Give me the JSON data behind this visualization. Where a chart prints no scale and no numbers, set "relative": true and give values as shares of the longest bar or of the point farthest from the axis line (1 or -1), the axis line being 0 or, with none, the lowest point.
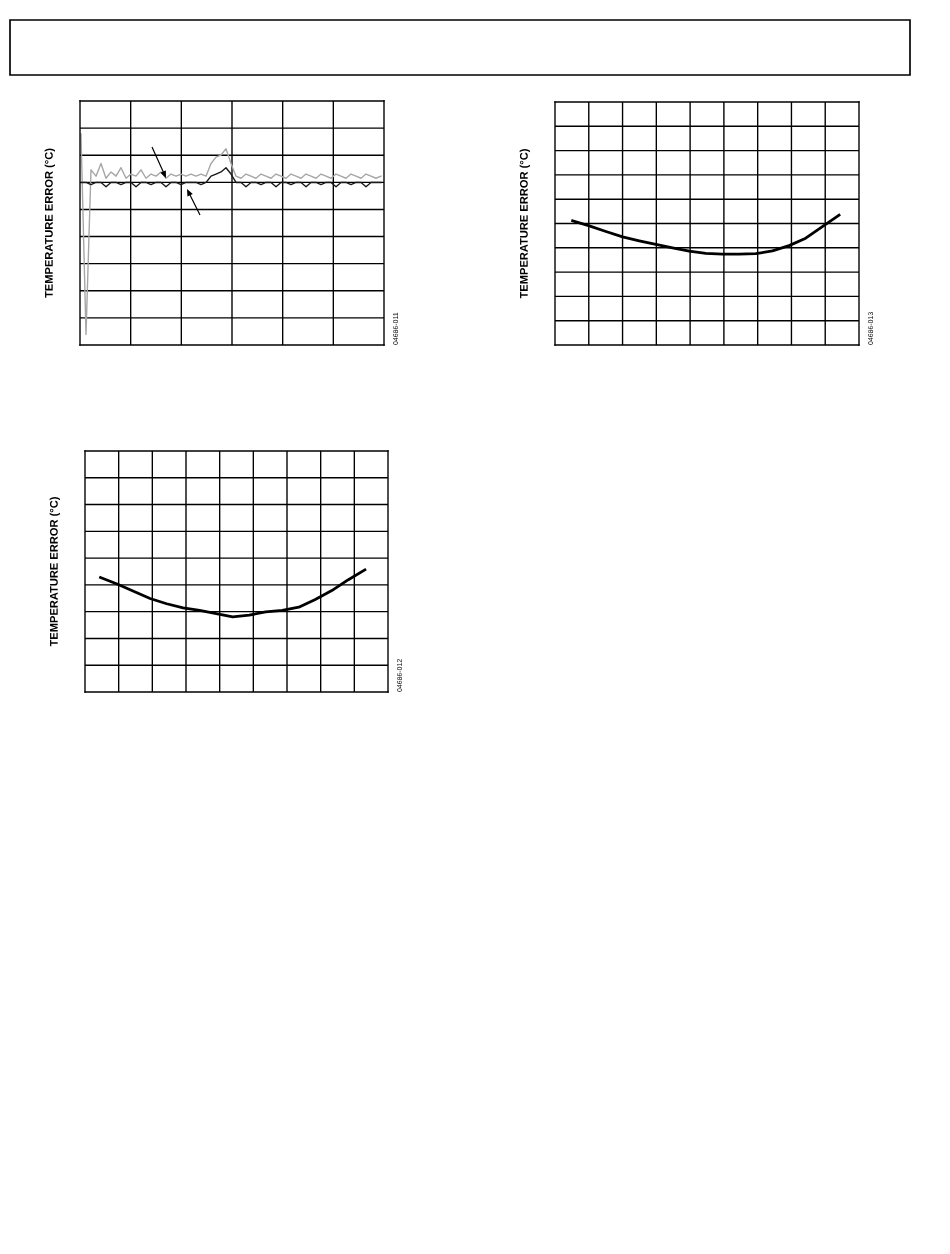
{
  "chart_data": [
    {
      "type": "line",
      "ylabel": "TEMPERATURE ERROR (°C)",
      "relative": true,
      "grid": true,
      "annotations": [
        "04686-011"
      ],
      "categories": [
        null,
        null,
        null,
        null,
        null,
        null,
        null,
        null,
        null,
        null,
        null,
        null,
        null,
        null,
        null,
        null,
        null,
        null,
        null,
        null,
        null,
        null,
        null,
        null,
        null,
        null,
        null,
        null,
        null,
        null,
        null,
        null,
        null,
        null,
        null,
        null,
        null,
        null,
        null,
        null,
        null,
        null,
        null,
        null,
        null,
        null,
        null,
        null,
        null,
        null,
        null,
        null,
        null,
        null,
        null,
        null,
        null,
        null,
        null,
        null,
        null
      ],
      "series": [
        {
          "color": "#a6a6a6",
          "values": [
            1,
            0.05,
            0.83,
            0.8,
            0.86,
            0.79,
            0.82,
            0.8,
            0.84,
            0.79,
            0.81,
            0.8,
            0.83,
            0.79,
            0.81,
            0.8,
            0.82,
            0.79,
            0.81,
            0.8,
            0.81,
            0.8,
            0.81,
            0.8,
            0.81,
            0.8,
            0.86,
            0.89,
            0.9,
            0.93,
            0.86,
            0.8,
            0.79,
            0.81,
            0.8,
            0.79,
            0.81,
            0.8,
            0.79,
            0.81,
            0.8,
            0.79,
            0.81,
            0.8,
            0.79,
            0.81,
            0.8,
            0.79,
            0.81,
            0.8,
            0.79,
            0.81,
            0.8,
            0.79,
            0.81,
            0.8,
            0.79,
            0.81,
            0.8,
            0.79,
            0.8
          ]
        },
        {
          "color": "#1a1a1a",
          "values": [
            0.77,
            0.77,
            0.76,
            0.77,
            0.77,
            0.75,
            0.77,
            0.77,
            0.76,
            0.77,
            0.77,
            0.75,
            0.77,
            0.77,
            0.76,
            0.77,
            0.77,
            0.75,
            0.77,
            0.77,
            0.76,
            0.77,
            0.77,
            0.77,
            0.76,
            0.77,
            0.8,
            0.81,
            0.82,
            0.84,
            0.81,
            0.77,
            0.77,
            0.75,
            0.77,
            0.77,
            0.76,
            0.77,
            0.77,
            0.75,
            0.77,
            0.77,
            0.76,
            0.77,
            0.77,
            0.75,
            0.77,
            0.77,
            0.76,
            0.77,
            0.77,
            0.75,
            0.77,
            0.77,
            0.76,
            0.77,
            0.77,
            0.75,
            0.77,
            0.77,
            0.77
          ]
        }
      ]
    },
    {
      "type": "line",
      "ylabel": "TEMPERATURE ERROR (°C)",
      "relative": true,
      "grid": true,
      "annotations": [
        "04686-013"
      ],
      "categories": [
        null,
        null,
        null,
        null,
        null,
        null,
        null,
        null,
        null,
        null,
        null,
        null,
        null,
        null,
        null,
        null,
        null
      ],
      "series": [
        {
          "color": "#000000",
          "values": [
            0.957,
            0.918,
            0.875,
            0.833,
            0.803,
            0.775,
            0.748,
            0.723,
            0.706,
            0.7,
            0.701,
            0.704,
            0.725,
            0.766,
            0.823,
            0.912,
            1
          ]
        }
      ]
    },
    {
      "type": "line",
      "ylabel": "TEMPERATURE ERROR (°C)",
      "relative": true,
      "grid": true,
      "annotations": [
        "04686-012"
      ],
      "categories": [
        null,
        null,
        null,
        null,
        null,
        null,
        null,
        null,
        null,
        null,
        null,
        null,
        null,
        null,
        null,
        null,
        null
      ],
      "series": [
        {
          "color": "#000000",
          "values": [
            0.937,
            0.884,
            0.824,
            0.765,
            0.722,
            0.688,
            0.667,
            0.641,
            0.615,
            0.629,
            0.655,
            0.667,
            0.694,
            0.757,
            0.83,
            0.919,
            1
          ]
        }
      ]
    }
  ]
}
